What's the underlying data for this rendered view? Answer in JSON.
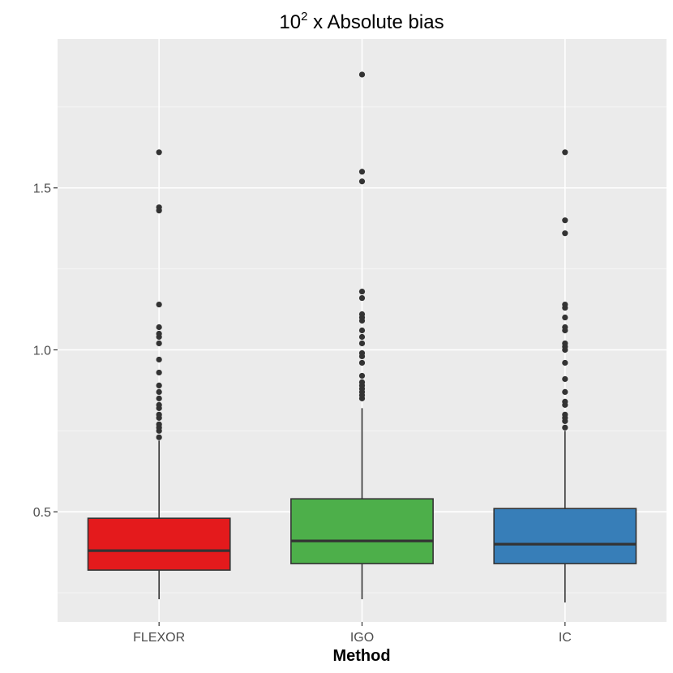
{
  "chart_data": {
    "type": "boxplot",
    "title": {
      "base": "10",
      "exponent": "2",
      "rest": " x Absolute bias"
    },
    "xlabel": "Method",
    "ylabel": "",
    "ylim": [
      0.16,
      1.96
    ],
    "yticks": [
      0.5,
      1.0,
      1.5
    ],
    "ytick_labels": [
      "0.5",
      "1.0",
      "1.5"
    ],
    "grid": true,
    "legend": "none",
    "categories": [
      "FLEXOR",
      "IGO",
      "IC"
    ],
    "boxes": [
      {
        "name": "FLEXOR",
        "color": "#e41a1c",
        "whisker_low": 0.23,
        "q1": 0.32,
        "median": 0.38,
        "q3": 0.48,
        "whisker_high": 0.72,
        "outliers": [
          0.73,
          0.75,
          0.76,
          0.77,
          0.79,
          0.8,
          0.82,
          0.83,
          0.85,
          0.87,
          0.89,
          0.93,
          0.97,
          1.02,
          1.04,
          1.05,
          1.07,
          1.14,
          1.43,
          1.44,
          1.61
        ]
      },
      {
        "name": "IGO",
        "color": "#4daf4a",
        "whisker_low": 0.23,
        "q1": 0.34,
        "median": 0.41,
        "q3": 0.54,
        "whisker_high": 0.82,
        "outliers": [
          0.85,
          0.86,
          0.87,
          0.88,
          0.89,
          0.9,
          0.92,
          0.96,
          0.98,
          0.99,
          1.02,
          1.04,
          1.06,
          1.09,
          1.1,
          1.11,
          1.16,
          1.18,
          1.52,
          1.55,
          1.85
        ]
      },
      {
        "name": "IC",
        "color": "#377eb8",
        "whisker_low": 0.22,
        "q1": 0.34,
        "median": 0.4,
        "q3": 0.51,
        "whisker_high": 0.75,
        "outliers": [
          0.76,
          0.78,
          0.79,
          0.8,
          0.83,
          0.84,
          0.87,
          0.91,
          0.96,
          1.0,
          1.01,
          1.02,
          1.06,
          1.07,
          1.1,
          1.13,
          1.14,
          1.36,
          1.4,
          1.61
        ]
      }
    ],
    "colors": {
      "panel_background": "#ebebeb",
      "grid_major": "#ffffff",
      "grid_minor": "#f5f5f5",
      "box_outline": "#333333",
      "outlier": "#333333",
      "tick_label": "#4d4d4d",
      "axis_tick": "#333333"
    }
  }
}
